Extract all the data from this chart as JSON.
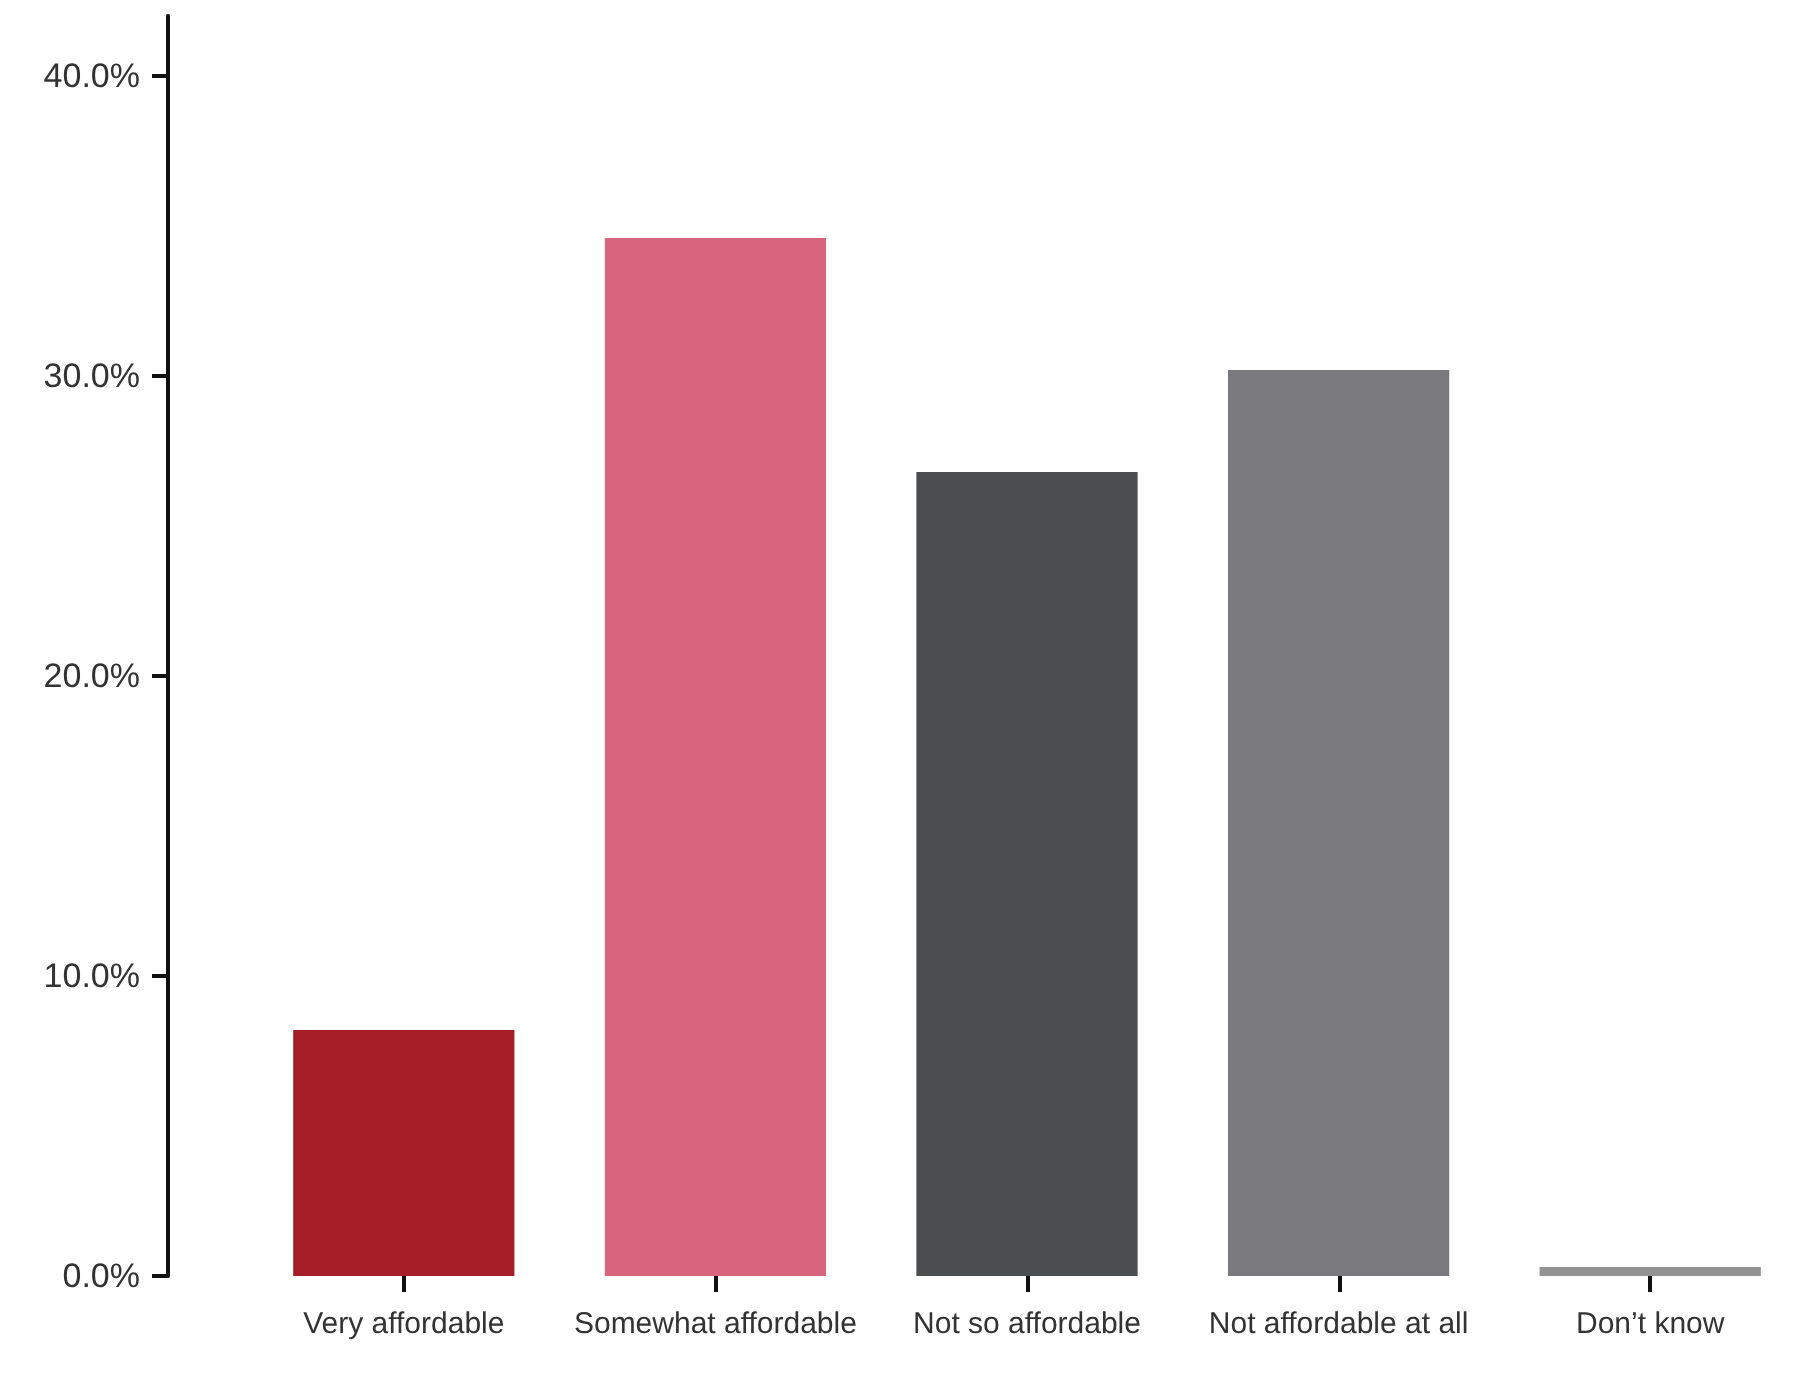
{
  "chart_data": {
    "type": "bar",
    "categories": [
      "Very affordable",
      "Somewhat affordable",
      "Not so affordable",
      "Not affordable at all",
      "Don’t know"
    ],
    "values": [
      8.2,
      34.6,
      26.8,
      30.2,
      0.3
    ],
    "colors": [
      "#a51e28",
      "#d7667d",
      "#4c4d4f",
      "#7a7a7e",
      "#939393"
    ],
    "ylim": [
      0,
      42
    ],
    "yticks": [
      {
        "value": 0,
        "label": "0.0%"
      },
      {
        "value": 10,
        "label": "10.0%"
      },
      {
        "value": 20,
        "label": "20.0%"
      },
      {
        "value": 30,
        "label": "30.0%"
      },
      {
        "value": 40,
        "label": "40.0%"
      }
    ],
    "grid": false
  }
}
